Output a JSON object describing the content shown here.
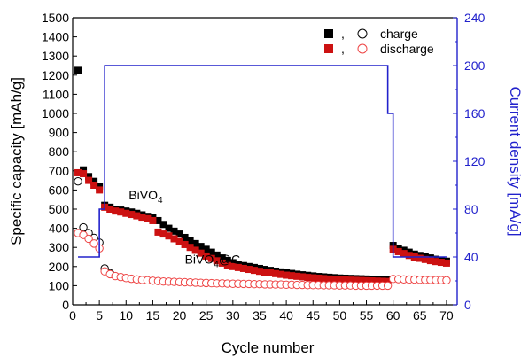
{
  "chart_data": {
    "type": "scatter",
    "xlabel": "Cycle number",
    "ylabel": "Specific capacity [mAh/g]",
    "y2label": "Current density [mA/g]",
    "xlim": [
      0,
      72
    ],
    "ylim": [
      0,
      1500
    ],
    "y2lim": [
      0,
      240
    ],
    "xticks": [
      0,
      5,
      10,
      15,
      20,
      25,
      30,
      35,
      40,
      45,
      50,
      55,
      60,
      65,
      70
    ],
    "yticks": [
      0,
      100,
      200,
      300,
      400,
      500,
      600,
      700,
      800,
      900,
      1000,
      1100,
      1200,
      1300,
      1400,
      1500
    ],
    "y2ticks": [
      0,
      40,
      80,
      120,
      160,
      200,
      240
    ],
    "legend": {
      "placement": "top-right",
      "separator": ",",
      "entries": [
        {
          "label": "charge",
          "filled_color": "#000000",
          "open_color": "#000000"
        },
        {
          "label": "discharge",
          "filled_color": "#cc1111",
          "open_color": "#ee4444"
        }
      ]
    },
    "annotations": [
      {
        "base": "BiVO",
        "sub": "4",
        "rest": "",
        "x": 10.5,
        "y": 550
      },
      {
        "base": "BiVO",
        "sub": "4",
        "rest": "@C",
        "x": 21,
        "y": 215
      }
    ],
    "colors": {
      "bivo4_charge": "#000000",
      "bivo4_discharge": "#cc1111",
      "bivo4c_charge": "#000000",
      "bivo4c_discharge": "#ee4444",
      "current_density": "#2222cc"
    },
    "series": [
      {
        "name": "BiVO4 charge",
        "marker": "filled-square",
        "color": "#000000",
        "x": [
          1,
          2,
          3,
          4,
          5,
          6,
          7,
          8,
          9,
          10,
          11,
          12,
          13,
          14,
          15,
          16,
          17,
          18,
          19,
          20,
          21,
          22,
          23,
          24,
          25,
          26,
          27,
          28,
          29,
          30,
          31,
          32,
          33,
          34,
          35,
          36,
          37,
          38,
          39,
          40,
          41,
          42,
          43,
          44,
          45,
          46,
          47,
          48,
          49,
          50,
          51,
          52,
          53,
          54,
          55,
          56,
          57,
          58,
          59,
          60,
          61,
          62,
          63,
          64,
          65,
          66,
          67,
          68,
          69,
          70
        ],
        "y": [
          1225,
          705,
          670,
          645,
          620,
          520,
          510,
          500,
          495,
          490,
          485,
          478,
          470,
          462,
          455,
          440,
          420,
          400,
          385,
          370,
          352,
          335,
          320,
          305,
          290,
          275,
          260,
          245,
          232,
          220,
          212,
          205,
          200,
          195,
          190,
          185,
          180,
          176,
          172,
          168,
          164,
          160,
          157,
          154,
          151,
          148,
          146,
          144,
          142,
          140,
          139,
          138,
          137,
          136,
          135,
          134,
          133,
          132,
          131,
          310,
          295,
          285,
          275,
          265,
          258,
          252,
          245,
          238,
          232,
          228
        ]
      },
      {
        "name": "BiVO4 discharge",
        "marker": "filled-square",
        "color": "#cc1111",
        "x": [
          1,
          2,
          3,
          4,
          5,
          6,
          7,
          8,
          9,
          10,
          11,
          12,
          13,
          14,
          15,
          16,
          17,
          18,
          19,
          20,
          21,
          22,
          23,
          24,
          25,
          26,
          27,
          28,
          29,
          30,
          31,
          32,
          33,
          34,
          35,
          36,
          37,
          38,
          39,
          40,
          41,
          42,
          43,
          44,
          45,
          46,
          47,
          48,
          49,
          50,
          51,
          52,
          53,
          54,
          55,
          56,
          57,
          58,
          59,
          60,
          61,
          62,
          63,
          64,
          65,
          66,
          67,
          68,
          69,
          70
        ],
        "y": [
          690,
          685,
          650,
          625,
          600,
          510,
          500,
          490,
          485,
          478,
          472,
          465,
          458,
          450,
          440,
          380,
          370,
          360,
          345,
          330,
          315,
          300,
          285,
          270,
          255,
          242,
          230,
          218,
          205,
          200,
          195,
          190,
          185,
          180,
          175,
          171,
          167,
          163,
          159,
          155,
          152,
          149,
          146,
          143,
          141,
          139,
          137,
          135,
          133,
          131,
          130,
          129,
          128,
          127,
          126,
          125,
          124,
          123,
          122,
          290,
          278,
          268,
          258,
          250,
          243,
          237,
          231,
          226,
          222,
          218
        ]
      },
      {
        "name": "BiVO4@C charge",
        "marker": "open-circle",
        "color": "#000000",
        "x": [
          1,
          2,
          3,
          4,
          5,
          6,
          7
        ],
        "y": [
          645,
          405,
          375,
          350,
          325,
          190,
          165
        ]
      },
      {
        "name": "BiVO4@C discharge",
        "marker": "open-circle",
        "color": "#ee4444",
        "x": [
          1,
          2,
          3,
          4,
          5,
          6,
          7,
          8,
          9,
          10,
          11,
          12,
          13,
          14,
          15,
          16,
          17,
          18,
          19,
          20,
          21,
          22,
          23,
          24,
          25,
          26,
          27,
          28,
          29,
          30,
          31,
          32,
          33,
          34,
          35,
          36,
          37,
          38,
          39,
          40,
          41,
          42,
          43,
          44,
          45,
          46,
          47,
          48,
          49,
          50,
          51,
          52,
          53,
          54,
          55,
          56,
          57,
          58,
          59,
          60,
          61,
          62,
          63,
          64,
          65,
          66,
          67,
          68,
          69,
          70
        ],
        "y": [
          375,
          365,
          345,
          320,
          295,
          175,
          160,
          150,
          145,
          140,
          136,
          133,
          130,
          128,
          126,
          124,
          122,
          121,
          120,
          119,
          118,
          117,
          116,
          115,
          114,
          113,
          112,
          112,
          111,
          110,
          110,
          109,
          109,
          108,
          108,
          107,
          107,
          106,
          106,
          105,
          105,
          104,
          104,
          103,
          103,
          103,
          102,
          102,
          102,
          101,
          101,
          101,
          100,
          100,
          100,
          100,
          100,
          100,
          100,
          135,
          134,
          133,
          132,
          132,
          131,
          130,
          130,
          129,
          129,
          128
        ]
      },
      {
        "name": "Current density",
        "marker": "line",
        "axis": "right",
        "color": "#2222cc",
        "x": [
          1,
          5,
          5,
          6,
          6,
          59,
          59,
          60,
          60,
          70
        ],
        "y": [
          40,
          40,
          80,
          80,
          200,
          200,
          160,
          160,
          40,
          40
        ]
      }
    ]
  }
}
